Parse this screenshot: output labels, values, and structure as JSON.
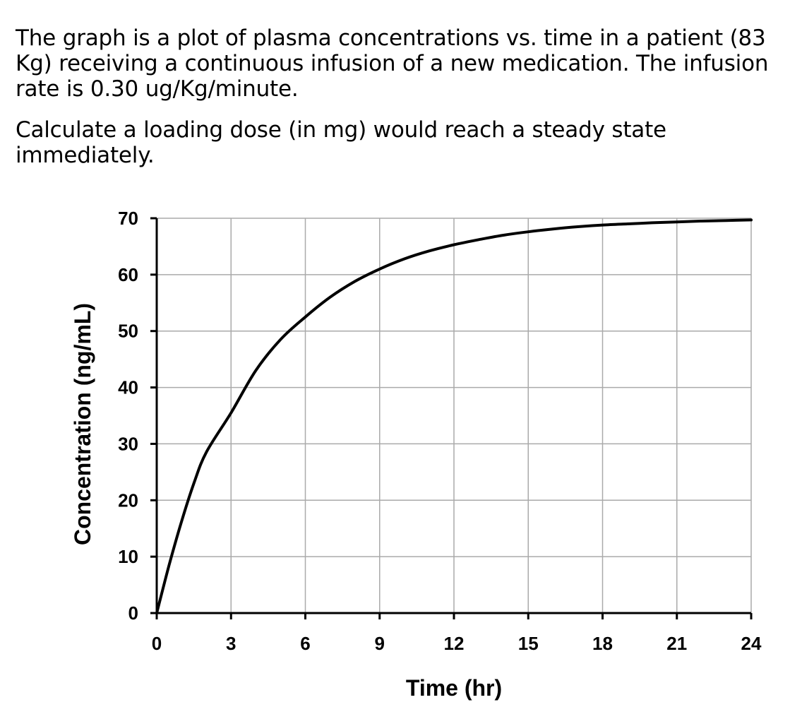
{
  "question": {
    "paragraph1": "The graph is a plot of plasma concentrations vs. time in a patient (83 Kg) receiving a continuous infusion of a new medication.  The infusion rate is 0.30 ug/Kg/minute.",
    "paragraph2": "Calculate a loading dose (in mg) would reach a steady state immediately."
  },
  "chart_data": {
    "type": "line",
    "title": "",
    "xlabel": "Time (hr)",
    "ylabel": "Concentration (ng/mL)",
    "xlim": [
      0,
      24
    ],
    "ylim": [
      0,
      70
    ],
    "xticks": [
      0,
      3,
      6,
      9,
      12,
      15,
      18,
      21,
      24
    ],
    "yticks": [
      0,
      10,
      20,
      30,
      40,
      50,
      60,
      70
    ],
    "grid": true,
    "legend": "none",
    "line_color": "#000000",
    "grid_color": "#aaaaaa",
    "series": [
      {
        "x": [
          0,
          0.5,
          1,
          1.5,
          2,
          3,
          4,
          5,
          6,
          7,
          8,
          9,
          10,
          11,
          12,
          13,
          14,
          15,
          16,
          17,
          18,
          19,
          20,
          21,
          22,
          23,
          24
        ],
        "values": [
          0,
          8.5,
          16.2,
          23.0,
          28.5,
          35.5,
          43.0,
          48.5,
          52.5,
          56.0,
          58.8,
          61.0,
          62.8,
          64.2,
          65.3,
          66.2,
          67.0,
          67.6,
          68.1,
          68.5,
          68.8,
          69.0,
          69.2,
          69.35,
          69.5,
          69.6,
          69.7
        ]
      }
    ]
  }
}
